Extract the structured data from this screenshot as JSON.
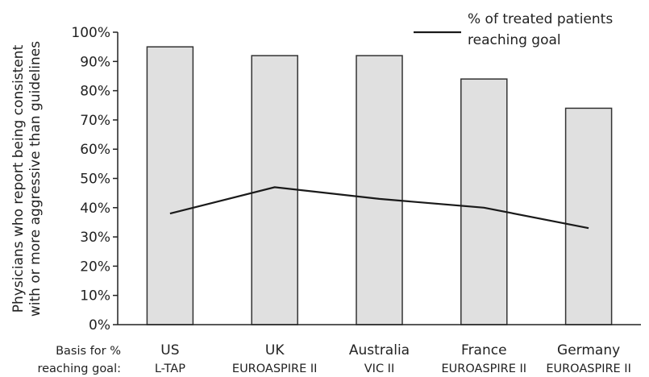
{
  "chart_data": {
    "type": "bar",
    "categories": [
      "US",
      "UK",
      "Australia",
      "France",
      "Germany"
    ],
    "category_sublabels": [
      "L-TAP",
      "EUROASPIRE II",
      "VIC II",
      "EUROASPIRE II",
      "EUROASPIRE II"
    ],
    "series": [
      {
        "type": "bar",
        "values": [
          95,
          92,
          92,
          84,
          74
        ]
      },
      {
        "type": "line",
        "name": "% of treated patients reaching goal",
        "values": [
          38,
          47,
          43,
          40,
          33
        ]
      }
    ],
    "ylabel_lines": [
      "Physicians who report being consistent",
      "with or more aggressive than guidelines"
    ],
    "x_row_label_lines": [
      "Basis for %",
      "reaching goal:"
    ],
    "legend_lines": [
      "% of treated patients",
      "reaching goal"
    ],
    "legend_position": "top-right",
    "ylim": [
      0,
      100
    ],
    "yticks": [
      "0%",
      "10%",
      "20%",
      "30%",
      "40%",
      "50%",
      "60%",
      "70%",
      "80%",
      "90%",
      "100%"
    ],
    "grid": false,
    "colors": {
      "bar_fill": "#e0e0e0",
      "bar_stroke": "#333333",
      "line": "#1a1a1a",
      "axis": "#222222"
    }
  }
}
